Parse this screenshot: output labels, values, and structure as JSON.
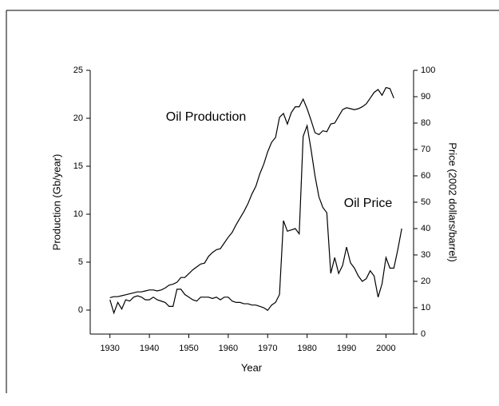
{
  "chart_data": {
    "type": "line",
    "annotations": [
      "Oil Production",
      "Oil Price"
    ],
    "xlabel": "Year",
    "ylabel": "Production (Gb/year)",
    "y2label": "Price (2002 dollars/barrel)",
    "x": [
      1930,
      1931,
      1932,
      1933,
      1934,
      1935,
      1936,
      1937,
      1938,
      1939,
      1940,
      1941,
      1942,
      1943,
      1944,
      1945,
      1946,
      1947,
      1948,
      1949,
      1950,
      1951,
      1952,
      1953,
      1954,
      1955,
      1956,
      1957,
      1958,
      1959,
      1960,
      1961,
      1962,
      1963,
      1964,
      1965,
      1966,
      1967,
      1968,
      1969,
      1970,
      1971,
      1972,
      1973,
      1974,
      1975,
      1976,
      1977,
      1978,
      1979,
      1980,
      1981,
      1982,
      1983,
      1984,
      1985,
      1986,
      1987,
      1988,
      1989,
      1990,
      1991,
      1992,
      1993,
      1994,
      1995,
      1996,
      1997,
      1998,
      1999,
      2000,
      2001,
      2002,
      2003,
      2004
    ],
    "series": [
      {
        "name": "Oil Production",
        "color": "#000000",
        "values": [
          1.3,
          1.4,
          1.4,
          1.5,
          1.6,
          1.7,
          1.8,
          1.9,
          1.9,
          2.0,
          2.1,
          2.1,
          2.0,
          2.1,
          2.3,
          2.6,
          2.7,
          2.9,
          3.4,
          3.4,
          3.8,
          4.2,
          4.5,
          4.8,
          4.9,
          5.6,
          6.0,
          6.3,
          6.4,
          7.0,
          7.6,
          8.1,
          8.9,
          9.6,
          10.3,
          11.1,
          12.1,
          12.9,
          14.2,
          15.2,
          16.5,
          17.5,
          18.0,
          20.1,
          20.5,
          19.4,
          20.6,
          21.2,
          21.2,
          22.0,
          21.0,
          19.8,
          18.5,
          18.3,
          18.7,
          18.6,
          19.4,
          19.5,
          20.2,
          20.9,
          21.1,
          21.0,
          20.9,
          21.0,
          21.2,
          21.5,
          22.1,
          22.7,
          23.0,
          22.4,
          23.2,
          23.1,
          22.1,
          null,
          null
        ]
      },
      {
        "name": "Oil Price",
        "color": "#000000",
        "axis": "y2",
        "values": [
          13,
          8,
          12,
          9.5,
          13,
          12.5,
          14,
          14.5,
          14,
          13,
          13,
          14,
          13,
          12.5,
          12,
          10.5,
          10.5,
          17,
          17,
          15,
          14,
          13,
          12.5,
          14,
          14,
          14,
          13.5,
          14,
          13,
          14,
          14,
          12.5,
          12,
          12,
          11.5,
          11.5,
          11,
          11,
          10.5,
          10,
          9,
          11,
          12,
          15,
          43,
          39,
          39.5,
          40,
          38,
          75,
          79,
          70,
          60,
          52,
          48,
          46,
          23,
          29,
          23,
          26,
          33,
          27,
          25,
          22,
          20,
          21,
          24,
          22,
          14,
          19,
          29,
          25,
          25,
          32,
          40
        ]
      }
    ],
    "xlim": [
      1925,
      2007
    ],
    "xticks": [
      1930,
      1940,
      1950,
      1960,
      1970,
      1980,
      1990,
      2000
    ],
    "ylim": [
      -2.5,
      25
    ],
    "yticks": [
      0,
      5,
      10,
      15,
      20,
      25
    ],
    "y2lim": [
      0,
      100
    ],
    "y2ticks": [
      0,
      10,
      20,
      30,
      40,
      50,
      60,
      70,
      80,
      90,
      100
    ],
    "grid": false
  }
}
